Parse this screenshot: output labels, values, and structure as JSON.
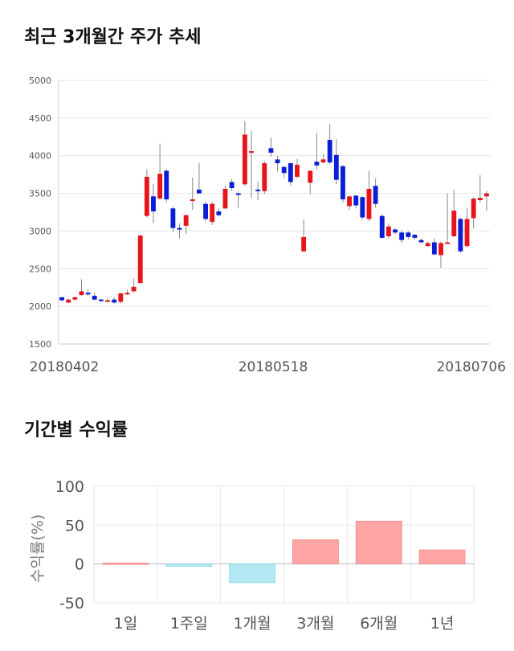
{
  "sections": {
    "price_title": "최근 3개월간 주가 추세",
    "return_title": "기간별 수익률"
  },
  "colors": {
    "up": "#e8141b",
    "down": "#0a1ed8",
    "wick": "#888888",
    "bar_positive": "#ffa5a5",
    "bar_negative": "#b3e8f2"
  },
  "chart_data": [
    {
      "type": "candlestick",
      "title": "최근 3개월간 주가 추세",
      "ylim": [
        1500,
        5000
      ],
      "yticks": [
        1500,
        2000,
        2500,
        3000,
        3500,
        4000,
        4500,
        5000
      ],
      "x_tick_labels": [
        "20180402",
        "20180518",
        "20180706"
      ],
      "grid": true,
      "candles": [
        [
          2120,
          2080,
          2130,
          2070
        ],
        [
          2050,
          2090,
          2100,
          2040
        ],
        [
          2090,
          2120,
          2130,
          2080
        ],
        [
          2150,
          2200,
          2360,
          2140
        ],
        [
          2180,
          2160,
          2230,
          2140
        ],
        [
          2140,
          2090,
          2180,
          2080
        ],
        [
          2090,
          2070,
          2100,
          2060
        ],
        [
          2080,
          2080,
          2110,
          2070
        ],
        [
          2090,
          2050,
          2120,
          2040
        ],
        [
          2060,
          2170,
          2180,
          2040
        ],
        [
          2170,
          2180,
          2220,
          2150
        ],
        [
          2200,
          2260,
          2370,
          2180
        ],
        [
          2310,
          2940,
          2950,
          2300
        ],
        [
          3200,
          3720,
          3820,
          3180
        ],
        [
          3460,
          3260,
          3620,
          3100
        ],
        [
          3430,
          3760,
          4160,
          3420
        ],
        [
          3800,
          3420,
          3820,
          3380
        ],
        [
          3300,
          3040,
          3320,
          2990
        ],
        [
          3040,
          3030,
          3100,
          2900
        ],
        [
          3070,
          3210,
          3220,
          2960
        ],
        [
          3410,
          3420,
          3710,
          3280
        ],
        [
          3550,
          3500,
          3900,
          3490
        ],
        [
          3360,
          3160,
          3390,
          3130
        ],
        [
          3120,
          3360,
          3390,
          3080
        ],
        [
          3260,
          3210,
          3300,
          3190
        ],
        [
          3300,
          3560,
          3600,
          3290
        ],
        [
          3650,
          3570,
          3690,
          3530
        ],
        [
          3500,
          3480,
          3530,
          3310
        ],
        [
          3620,
          4280,
          4460,
          3600
        ],
        [
          4060,
          4060,
          4330,
          3440
        ],
        [
          3550,
          3540,
          3660,
          3410
        ],
        [
          3530,
          3900,
          3930,
          3490
        ],
        [
          4100,
          4040,
          4240,
          3990
        ],
        [
          3950,
          3900,
          4000,
          3790
        ],
        [
          3850,
          3770,
          3870,
          3700
        ],
        [
          3900,
          3650,
          3910,
          3600
        ],
        [
          3720,
          3880,
          3960,
          3700
        ],
        [
          2730,
          2920,
          3150,
          2720
        ],
        [
          3640,
          3800,
          3800,
          3490
        ],
        [
          3920,
          3870,
          4300,
          3810
        ],
        [
          3910,
          3950,
          4020,
          3900
        ],
        [
          4210,
          3910,
          4420,
          3890
        ],
        [
          4010,
          3680,
          4220,
          3620
        ],
        [
          3860,
          3420,
          3880,
          3380
        ],
        [
          3330,
          3460,
          3470,
          3280
        ],
        [
          3470,
          3340,
          3480,
          3300
        ],
        [
          3450,
          3180,
          3460,
          3150
        ],
        [
          3160,
          3560,
          3800,
          3130
        ],
        [
          3600,
          3360,
          3700,
          3310
        ],
        [
          3200,
          2910,
          3220,
          2900
        ],
        [
          2930,
          3060,
          3100,
          2900
        ],
        [
          3020,
          2980,
          3040,
          2960
        ],
        [
          2980,
          2880,
          3010,
          2840
        ],
        [
          2980,
          2920,
          3000,
          2890
        ],
        [
          2950,
          2910,
          2960,
          2880
        ],
        [
          2880,
          2850,
          2900,
          2840
        ],
        [
          2800,
          2840,
          2860,
          2790
        ],
        [
          2850,
          2690,
          2900,
          2680
        ],
        [
          2680,
          2840,
          2860,
          2510
        ],
        [
          2830,
          2850,
          3500,
          2830
        ],
        [
          2930,
          3270,
          3550,
          2920
        ],
        [
          3160,
          2730,
          3180,
          2710
        ],
        [
          2800,
          3160,
          3300,
          2780
        ],
        [
          3170,
          3430,
          3450,
          3030
        ],
        [
          3410,
          3440,
          3740,
          3380
        ],
        [
          3460,
          3500,
          3530,
          3270
        ]
      ]
    },
    {
      "type": "bar",
      "title": "기간별 수익률",
      "ylabel": "수익률(%)",
      "ylim": [
        -50,
        100
      ],
      "yticks": [
        -50,
        0,
        50,
        100
      ],
      "categories": [
        "1일",
        "1주일",
        "1개월",
        "3개월",
        "6개월",
        "1년"
      ],
      "values": [
        1,
        -3,
        -24,
        31,
        55,
        18
      ],
      "grid": true
    }
  ]
}
